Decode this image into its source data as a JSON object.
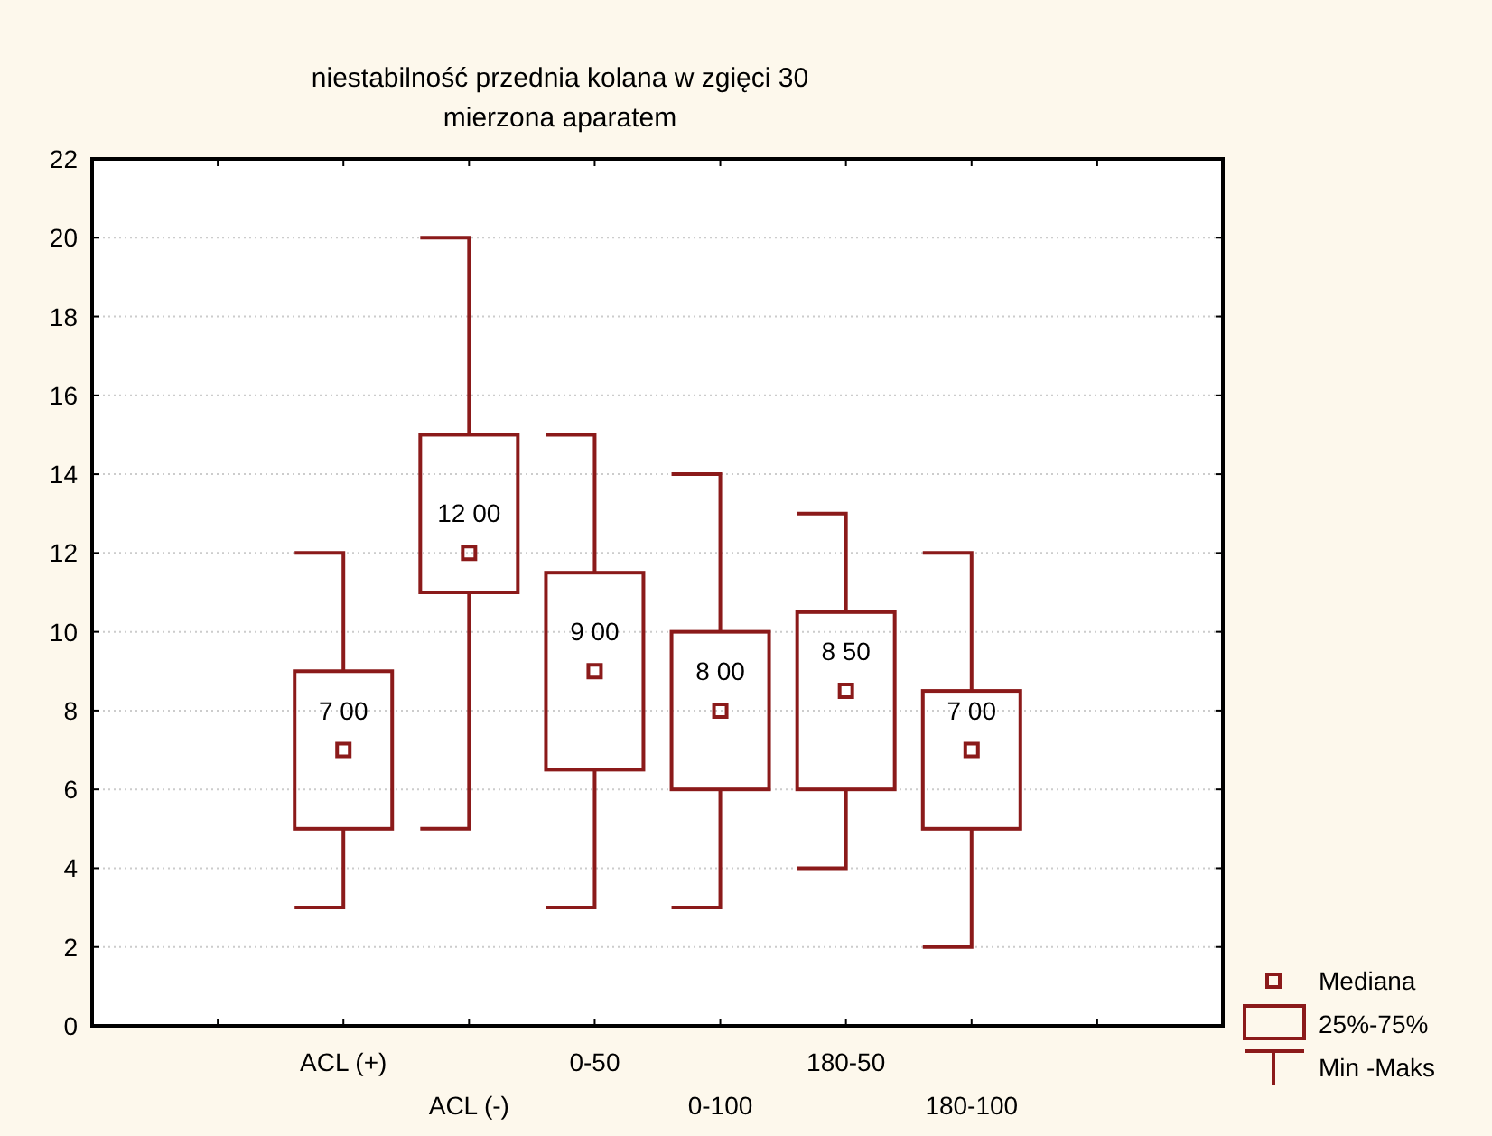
{
  "chart_data": {
    "type": "box",
    "title": "niestabilność przednia kolana w zgięci 30",
    "subtitle": "mierzona aparatem",
    "categories": [
      null,
      null,
      "ACL (+)",
      "ACL (-)",
      "0-50",
      "0-100",
      "180-50",
      "180-100",
      null,
      null
    ],
    "series": [
      {
        "color": "#8b1a1a",
        "boxes": [
          null,
          null,
          {
            "low": 3,
            "q1": 5,
            "median": 7,
            "q3": 9,
            "high": 12
          },
          {
            "low": 5,
            "q1": 11,
            "median": 12,
            "q3": 15,
            "high": 20
          },
          {
            "low": 3,
            "q1": 6.5,
            "median": 9,
            "q3": 11.5,
            "high": 15
          },
          {
            "low": 3,
            "q1": 6,
            "median": 8,
            "q3": 10,
            "high": 14
          },
          {
            "low": 4,
            "q1": 6,
            "median": 8.5,
            "q3": 10.5,
            "high": 13
          },
          {
            "low": 2,
            "q1": 5,
            "median": 7,
            "q3": 8.5,
            "high": 12
          },
          null,
          null
        ]
      }
    ],
    "ylim": [
      0,
      22
    ],
    "yticks": [
      0,
      2,
      4,
      6,
      8,
      10,
      12,
      14,
      16,
      18,
      20,
      22
    ],
    "grid": "y",
    "marker": "square",
    "annotations": [
      "Mediana",
      "25%-75%",
      "Min -Maks",
      "7 00",
      "12 00",
      "9 00",
      "8 00",
      "8 50",
      "7 00"
    ]
  }
}
